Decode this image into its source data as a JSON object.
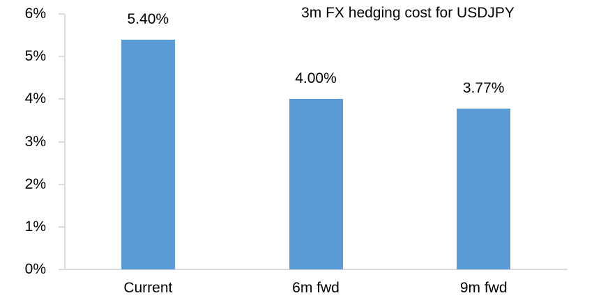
{
  "chart_data": {
    "type": "bar",
    "title": "3m FX hedging cost for USDJPY",
    "categories": [
      "Current",
      "6m fwd",
      "9m fwd"
    ],
    "values": [
      5.4,
      4.0,
      3.77
    ],
    "value_labels": [
      "5.40%",
      "4.00%",
      "3.77%"
    ],
    "xlabel": "",
    "ylabel": "",
    "ylim": [
      0,
      6
    ],
    "ytick_step": 1,
    "ytick_labels": [
      "0%",
      "1%",
      "2%",
      "3%",
      "4%",
      "5%",
      "6%"
    ],
    "grid": false,
    "legend": null,
    "bar_color": "#5B9BD5",
    "axis_color": "#D9D9D9",
    "text_color": "#000000",
    "background_color": "#FFFFFF"
  }
}
